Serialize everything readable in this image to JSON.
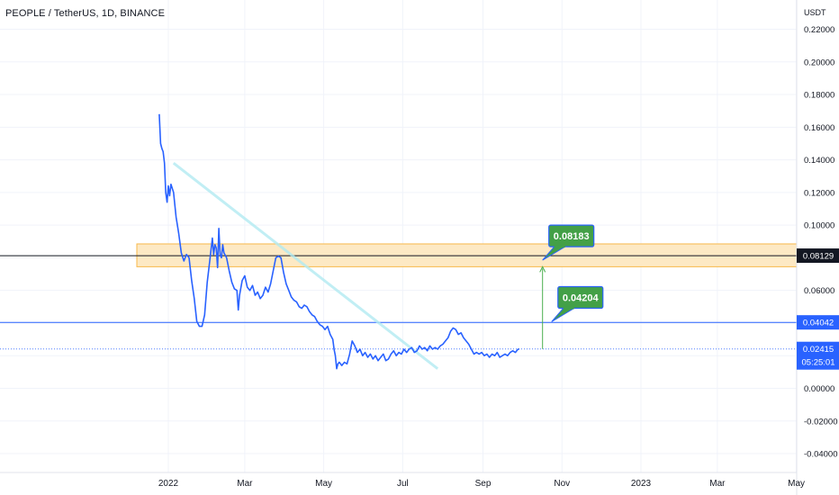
{
  "header": {
    "title": "PEOPLE / TetherUS, 1D, BINANCE",
    "axis_unit": "USDT"
  },
  "chart_data": {
    "type": "line",
    "title": "PEOPLE / TetherUS, 1D, BINANCE",
    "ylabel": "USDT",
    "ylim": [
      -0.05,
      0.225
    ],
    "grid": true,
    "y_ticks": [
      "0.22000",
      "0.20000",
      "0.18000",
      "0.16000",
      "0.14000",
      "0.12000",
      "0.10000",
      "0.08000",
      "0.06000",
      "0.04000",
      "0.02000",
      "0.00000",
      "-0.02000",
      "-0.04000"
    ],
    "x_ticks": [
      {
        "label": "2022",
        "date": "2022-01-01"
      },
      {
        "label": "Mar",
        "date": "2022-03-01"
      },
      {
        "label": "May",
        "date": "2022-05-01"
      },
      {
        "label": "Jul",
        "date": "2022-07-01"
      },
      {
        "label": "Sep",
        "date": "2022-09-01"
      },
      {
        "label": "Nov",
        "date": "2022-11-01"
      },
      {
        "label": "2023",
        "date": "2023-01-01"
      },
      {
        "label": "Mar",
        "date": "2023-03-01"
      },
      {
        "label": "May",
        "date": "2023-05-01"
      }
    ],
    "series": [
      {
        "color": "#2962ff",
        "points": [
          [
            "2021-12-25",
            0.168
          ],
          [
            "2021-12-26",
            0.15
          ],
          [
            "2021-12-27",
            0.147
          ],
          [
            "2021-12-28",
            0.145
          ],
          [
            "2021-12-29",
            0.138
          ],
          [
            "2021-12-30",
            0.12
          ],
          [
            "2021-12-31",
            0.114
          ],
          [
            "2022-01-01",
            0.124
          ],
          [
            "2022-01-02",
            0.118
          ],
          [
            "2022-01-03",
            0.125
          ],
          [
            "2022-01-05",
            0.12
          ],
          [
            "2022-01-07",
            0.105
          ],
          [
            "2022-01-09",
            0.095
          ],
          [
            "2022-01-11",
            0.083
          ],
          [
            "2022-01-13",
            0.078
          ],
          [
            "2022-01-15",
            0.082
          ],
          [
            "2022-01-17",
            0.08
          ],
          [
            "2022-01-19",
            0.066
          ],
          [
            "2022-01-21",
            0.055
          ],
          [
            "2022-01-23",
            0.041
          ],
          [
            "2022-01-25",
            0.038
          ],
          [
            "2022-01-27",
            0.038
          ],
          [
            "2022-01-29",
            0.045
          ],
          [
            "2022-01-31",
            0.065
          ],
          [
            "2022-02-02",
            0.078
          ],
          [
            "2022-02-04",
            0.092
          ],
          [
            "2022-02-05",
            0.082
          ],
          [
            "2022-02-06",
            0.088
          ],
          [
            "2022-02-07",
            0.086
          ],
          [
            "2022-02-08",
            0.074
          ],
          [
            "2022-02-09",
            0.098
          ],
          [
            "2022-02-10",
            0.082
          ],
          [
            "2022-02-11",
            0.08
          ],
          [
            "2022-02-12",
            0.088
          ],
          [
            "2022-02-13",
            0.083
          ],
          [
            "2022-02-15",
            0.08
          ],
          [
            "2022-02-17",
            0.072
          ],
          [
            "2022-02-19",
            0.065
          ],
          [
            "2022-02-21",
            0.061
          ],
          [
            "2022-02-23",
            0.06
          ],
          [
            "2022-02-24",
            0.048
          ],
          [
            "2022-02-25",
            0.057
          ],
          [
            "2022-02-27",
            0.066
          ],
          [
            "2022-03-01",
            0.069
          ],
          [
            "2022-03-03",
            0.062
          ],
          [
            "2022-03-05",
            0.06
          ],
          [
            "2022-03-07",
            0.063
          ],
          [
            "2022-03-09",
            0.057
          ],
          [
            "2022-03-11",
            0.059
          ],
          [
            "2022-03-13",
            0.055
          ],
          [
            "2022-03-15",
            0.057
          ],
          [
            "2022-03-17",
            0.062
          ],
          [
            "2022-03-19",
            0.059
          ],
          [
            "2022-03-21",
            0.064
          ],
          [
            "2022-03-23",
            0.072
          ],
          [
            "2022-03-25",
            0.08
          ],
          [
            "2022-03-27",
            0.081
          ],
          [
            "2022-03-29",
            0.08
          ],
          [
            "2022-03-31",
            0.071
          ],
          [
            "2022-04-02",
            0.064
          ],
          [
            "2022-04-04",
            0.06
          ],
          [
            "2022-04-06",
            0.056
          ],
          [
            "2022-04-08",
            0.054
          ],
          [
            "2022-04-10",
            0.053
          ],
          [
            "2022-04-12",
            0.05
          ],
          [
            "2022-04-14",
            0.049
          ],
          [
            "2022-04-16",
            0.051
          ],
          [
            "2022-04-18",
            0.05
          ],
          [
            "2022-04-20",
            0.047
          ],
          [
            "2022-04-22",
            0.045
          ],
          [
            "2022-04-24",
            0.044
          ],
          [
            "2022-04-26",
            0.041
          ],
          [
            "2022-04-28",
            0.039
          ],
          [
            "2022-04-30",
            0.038
          ],
          [
            "2022-05-02",
            0.036
          ],
          [
            "2022-05-04",
            0.038
          ],
          [
            "2022-05-06",
            0.033
          ],
          [
            "2022-05-08",
            0.03
          ],
          [
            "2022-05-09",
            0.024
          ],
          [
            "2022-05-10",
            0.02
          ],
          [
            "2022-05-11",
            0.012
          ],
          [
            "2022-05-12",
            0.015
          ],
          [
            "2022-05-13",
            0.016
          ],
          [
            "2022-05-15",
            0.014
          ],
          [
            "2022-05-17",
            0.016
          ],
          [
            "2022-05-19",
            0.015
          ],
          [
            "2022-05-21",
            0.021
          ],
          [
            "2022-05-23",
            0.029
          ],
          [
            "2022-05-25",
            0.026
          ],
          [
            "2022-05-27",
            0.022
          ],
          [
            "2022-05-29",
            0.024
          ],
          [
            "2022-05-31",
            0.02
          ],
          [
            "2022-06-02",
            0.022
          ],
          [
            "2022-06-04",
            0.019
          ],
          [
            "2022-06-06",
            0.021
          ],
          [
            "2022-06-08",
            0.018
          ],
          [
            "2022-06-10",
            0.02
          ],
          [
            "2022-06-12",
            0.017
          ],
          [
            "2022-06-14",
            0.019
          ],
          [
            "2022-06-16",
            0.021
          ],
          [
            "2022-06-18",
            0.017
          ],
          [
            "2022-06-20",
            0.018
          ],
          [
            "2022-06-22",
            0.021
          ],
          [
            "2022-06-24",
            0.023
          ],
          [
            "2022-06-26",
            0.02
          ],
          [
            "2022-06-28",
            0.022
          ],
          [
            "2022-06-30",
            0.021
          ],
          [
            "2022-07-02",
            0.024
          ],
          [
            "2022-07-04",
            0.022
          ],
          [
            "2022-07-06",
            0.024
          ],
          [
            "2022-07-08",
            0.025
          ],
          [
            "2022-07-10",
            0.022
          ],
          [
            "2022-07-12",
            0.023
          ],
          [
            "2022-07-14",
            0.026
          ],
          [
            "2022-07-16",
            0.024
          ],
          [
            "2022-07-18",
            0.025
          ],
          [
            "2022-07-20",
            0.023
          ],
          [
            "2022-07-22",
            0.026
          ],
          [
            "2022-07-24",
            0.024
          ],
          [
            "2022-07-26",
            0.025
          ],
          [
            "2022-07-28",
            0.024
          ],
          [
            "2022-07-30",
            0.026
          ],
          [
            "2022-08-01",
            0.027
          ],
          [
            "2022-08-03",
            0.029
          ],
          [
            "2022-08-05",
            0.031
          ],
          [
            "2022-08-07",
            0.035
          ],
          [
            "2022-08-09",
            0.037
          ],
          [
            "2022-08-11",
            0.036
          ],
          [
            "2022-08-13",
            0.033
          ],
          [
            "2022-08-15",
            0.034
          ],
          [
            "2022-08-17",
            0.031
          ],
          [
            "2022-08-19",
            0.029
          ],
          [
            "2022-08-21",
            0.027
          ],
          [
            "2022-08-23",
            0.024
          ],
          [
            "2022-08-25",
            0.021
          ],
          [
            "2022-08-27",
            0.022
          ],
          [
            "2022-08-29",
            0.021
          ],
          [
            "2022-08-31",
            0.022
          ],
          [
            "2022-09-02",
            0.02
          ],
          [
            "2022-09-04",
            0.021
          ],
          [
            "2022-09-06",
            0.019
          ],
          [
            "2022-09-08",
            0.021
          ],
          [
            "2022-09-10",
            0.02
          ],
          [
            "2022-09-12",
            0.022
          ],
          [
            "2022-09-14",
            0.019
          ],
          [
            "2022-09-16",
            0.02
          ],
          [
            "2022-09-18",
            0.021
          ],
          [
            "2022-09-20",
            0.02
          ],
          [
            "2022-09-22",
            0.022
          ],
          [
            "2022-09-24",
            0.023
          ],
          [
            "2022-09-26",
            0.022
          ],
          [
            "2022-09-28",
            0.024
          ],
          [
            "2022-09-29",
            0.0241
          ]
        ]
      }
    ],
    "annotations": {
      "resistance_zone": {
        "from": 0.0745,
        "to": 0.0885,
        "fill": "#fde9c4",
        "stroke": "#f7b84a"
      },
      "black_level": {
        "value": 0.08129,
        "label": "0.08129",
        "color": "#131722"
      },
      "blue_level": {
        "value": 0.04042,
        "label": "0.04042",
        "color": "#2962ff"
      },
      "current_price": {
        "value": 0.02415,
        "label": "0.02415",
        "countdown": "05:25:01",
        "color": "#2962ff"
      },
      "trendline": {
        "from": [
          "2022-01-05",
          0.138
        ],
        "to": [
          "2022-07-28",
          0.012
        ],
        "color": "#b2ebf2"
      },
      "target_arrow": {
        "date": "2022-10-17",
        "from": 0.0241,
        "to": 0.0745,
        "color": "#4caf50"
      },
      "callouts": [
        {
          "label": "0.08183",
          "anchor": [
            "2022-10-17",
            0.0785
          ],
          "fill": "#43a047"
        },
        {
          "label": "0.04204",
          "anchor": [
            "2022-10-24",
            0.0408
          ],
          "fill": "#43a047"
        }
      ]
    }
  }
}
